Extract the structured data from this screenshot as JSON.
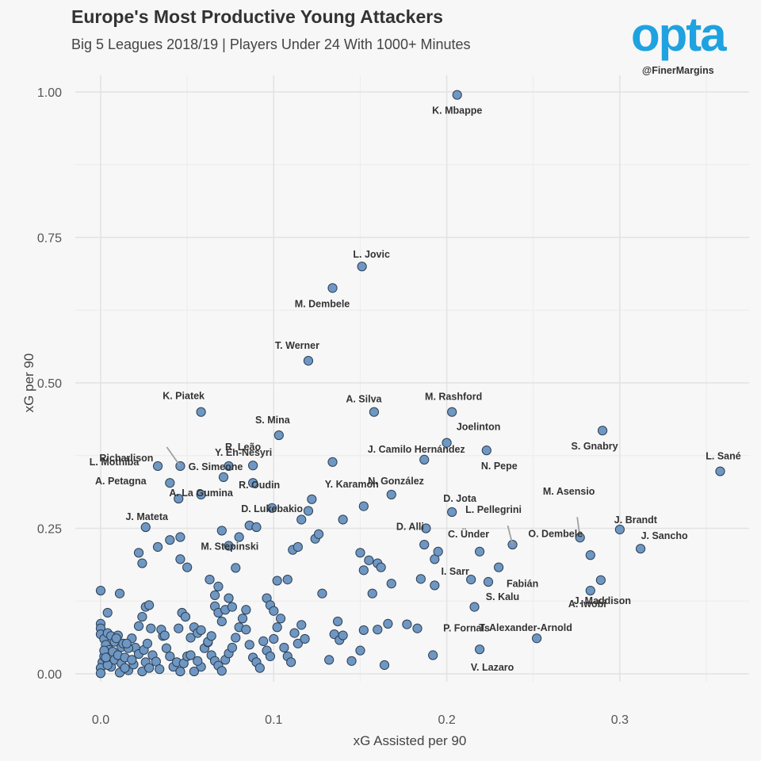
{
  "header": {
    "title": "Europe's Most Productive Young Attackers",
    "subtitle": "Big 5 Leagues 2018/19 | Players Under 24 With 1000+ Minutes"
  },
  "branding": {
    "logo_text": "opta",
    "handle": "@FinerMargins",
    "logo_color": "#1fa2e0"
  },
  "chart_data": {
    "type": "scatter",
    "xlabel": "xG Assisted per 90",
    "ylabel": "xG per 90",
    "xlim": [
      0.0,
      0.36
    ],
    "ylim": [
      0.0,
      1.0
    ],
    "xticks": [
      0.0,
      0.1,
      0.2,
      0.3
    ],
    "xtick_labels": [
      "0.0",
      "0.1",
      "0.2",
      "0.3"
    ],
    "yticks": [
      0.0,
      0.25,
      0.5,
      0.75,
      1.0
    ],
    "ytick_labels": [
      "0.00",
      "0.25",
      "0.50",
      "0.75",
      "1.00"
    ],
    "grid": true,
    "marker_color": "#6f97c2",
    "marker_edge": "#2b3f55",
    "labeled_points": [
      {
        "name": "K. Mbappe",
        "x": 0.206,
        "y": 0.995
      },
      {
        "name": "L. Jovic",
        "x": 0.151,
        "y": 0.7
      },
      {
        "name": "M. Dembele",
        "x": 0.134,
        "y": 0.663
      },
      {
        "name": "T. Werner",
        "x": 0.12,
        "y": 0.538
      },
      {
        "name": "K. Piatek",
        "x": 0.058,
        "y": 0.45
      },
      {
        "name": "M. Rashford",
        "x": 0.203,
        "y": 0.45
      },
      {
        "name": "A. Silva",
        "x": 0.158,
        "y": 0.45
      },
      {
        "name": "S. Gnabry",
        "x": 0.29,
        "y": 0.418
      },
      {
        "name": "S. Mina",
        "x": 0.103,
        "y": 0.41
      },
      {
        "name": "Joelinton",
        "x": 0.2,
        "y": 0.397
      },
      {
        "name": "Richarlison",
        "x": 0.046,
        "y": 0.357
      },
      {
        "name": "R. Leão",
        "x": 0.074,
        "y": 0.357
      },
      {
        "name": "N. Pepe",
        "x": 0.223,
        "y": 0.384
      },
      {
        "name": "J. Camilo Hernández",
        "x": 0.187,
        "y": 0.368
      },
      {
        "name": "L. Mothiba",
        "x": 0.033,
        "y": 0.357
      },
      {
        "name": "G. Simeone",
        "x": 0.071,
        "y": 0.338
      },
      {
        "name": "Y. En-Nesyri",
        "x": 0.088,
        "y": 0.358
      },
      {
        "name": "N. González",
        "x": 0.134,
        "y": 0.364
      },
      {
        "name": "L. Sané",
        "x": 0.358,
        "y": 0.348
      },
      {
        "name": "A. Petagna",
        "x": 0.04,
        "y": 0.328
      },
      {
        "name": "A. La Gumina",
        "x": 0.058,
        "y": 0.308
      },
      {
        "name": "R. Oudin",
        "x": 0.088,
        "y": 0.328
      },
      {
        "name": "Y. Karamoh",
        "x": 0.168,
        "y": 0.308
      },
      {
        "name": "J. Mateta",
        "x": 0.045,
        "y": 0.301
      },
      {
        "name": "D. Lukebakio",
        "x": 0.099,
        "y": 0.285
      },
      {
        "name": "D. Jota",
        "x": 0.203,
        "y": 0.278
      },
      {
        "name": "D. Alli",
        "x": 0.188,
        "y": 0.25
      },
      {
        "name": "L. Pellegrini",
        "x": 0.238,
        "y": 0.222
      },
      {
        "name": "M. Asensio",
        "x": 0.277,
        "y": 0.234
      },
      {
        "name": "J. Brandt",
        "x": 0.3,
        "y": 0.248
      },
      {
        "name": "M. Stepinski",
        "x": 0.07,
        "y": 0.246
      },
      {
        "name": "O. Dembele",
        "x": 0.283,
        "y": 0.204
      },
      {
        "name": "J. Sancho",
        "x": 0.312,
        "y": 0.215
      },
      {
        "name": "C. Ünder",
        "x": 0.219,
        "y": 0.21
      },
      {
        "name": "Fabián",
        "x": 0.23,
        "y": 0.183
      },
      {
        "name": "J. Maddison",
        "x": 0.289,
        "y": 0.161
      },
      {
        "name": "I. Sarr",
        "x": 0.214,
        "y": 0.162
      },
      {
        "name": "S. Kalu",
        "x": 0.224,
        "y": 0.158
      },
      {
        "name": "A. Iwobi",
        "x": 0.283,
        "y": 0.143
      },
      {
        "name": "P. Fornals",
        "x": 0.216,
        "y": 0.115
      },
      {
        "name": "T. Alexander-Arnold",
        "x": 0.252,
        "y": 0.061
      },
      {
        "name": "V. Lazaro",
        "x": 0.219,
        "y": 0.042
      }
    ],
    "unlabeled_points": [
      [
        0.0,
        0.143
      ],
      [
        0.011,
        0.138
      ],
      [
        0.004,
        0.105
      ],
      [
        0.0,
        0.086
      ],
      [
        0.0,
        0.078
      ],
      [
        0.0,
        0.068
      ],
      [
        0.002,
        0.06
      ],
      [
        0.004,
        0.07
      ],
      [
        0.006,
        0.065
      ],
      [
        0.008,
        0.055
      ],
      [
        0.01,
        0.066
      ],
      [
        0.012,
        0.046
      ],
      [
        0.003,
        0.05
      ],
      [
        0.005,
        0.041
      ],
      [
        0.007,
        0.038
      ],
      [
        0.001,
        0.02
      ],
      [
        0.002,
        0.03
      ],
      [
        0.004,
        0.022
      ],
      [
        0.006,
        0.012
      ],
      [
        0.008,
        0.024
      ],
      [
        0.0,
        0.01
      ],
      [
        0.0,
        0.001
      ],
      [
        0.004,
        0.015
      ],
      [
        0.01,
        0.032
      ],
      [
        0.012,
        0.018
      ],
      [
        0.014,
        0.028
      ],
      [
        0.016,
        0.006
      ],
      [
        0.011,
        0.002
      ],
      [
        0.009,
        0.061
      ],
      [
        0.013,
        0.052
      ],
      [
        0.018,
        0.061
      ],
      [
        0.02,
        0.045
      ],
      [
        0.022,
        0.034
      ],
      [
        0.019,
        0.016
      ],
      [
        0.024,
        0.004
      ],
      [
        0.026,
        0.02
      ],
      [
        0.028,
        0.01
      ],
      [
        0.025,
        0.041
      ],
      [
        0.027,
        0.052
      ],
      [
        0.03,
        0.032
      ],
      [
        0.032,
        0.021
      ],
      [
        0.034,
        0.008
      ],
      [
        0.029,
        0.078
      ],
      [
        0.022,
        0.082
      ],
      [
        0.024,
        0.098
      ],
      [
        0.026,
        0.115
      ],
      [
        0.028,
        0.118
      ],
      [
        0.036,
        0.065
      ],
      [
        0.038,
        0.044
      ],
      [
        0.04,
        0.03
      ],
      [
        0.042,
        0.012
      ],
      [
        0.044,
        0.02
      ],
      [
        0.046,
        0.004
      ],
      [
        0.048,
        0.018
      ],
      [
        0.05,
        0.03
      ],
      [
        0.052,
        0.062
      ],
      [
        0.054,
        0.08
      ],
      [
        0.045,
        0.078
      ],
      [
        0.047,
        0.105
      ],
      [
        0.049,
        0.098
      ],
      [
        0.035,
        0.076
      ],
      [
        0.037,
        0.066
      ],
      [
        0.056,
        0.07
      ],
      [
        0.058,
        0.075
      ],
      [
        0.06,
        0.044
      ],
      [
        0.062,
        0.054
      ],
      [
        0.064,
        0.032
      ],
      [
        0.066,
        0.022
      ],
      [
        0.068,
        0.014
      ],
      [
        0.07,
        0.005
      ],
      [
        0.072,
        0.024
      ],
      [
        0.074,
        0.035
      ],
      [
        0.076,
        0.045
      ],
      [
        0.078,
        0.062
      ],
      [
        0.08,
        0.08
      ],
      [
        0.082,
        0.095
      ],
      [
        0.084,
        0.11
      ],
      [
        0.066,
        0.116
      ],
      [
        0.068,
        0.105
      ],
      [
        0.07,
        0.09
      ],
      [
        0.072,
        0.11
      ],
      [
        0.074,
        0.13
      ],
      [
        0.076,
        0.115
      ],
      [
        0.066,
        0.135
      ],
      [
        0.068,
        0.15
      ],
      [
        0.05,
        0.183
      ],
      [
        0.046,
        0.197
      ],
      [
        0.04,
        0.23
      ],
      [
        0.033,
        0.218
      ],
      [
        0.022,
        0.208
      ],
      [
        0.024,
        0.19
      ],
      [
        0.026,
        0.252
      ],
      [
        0.046,
        0.235
      ],
      [
        0.074,
        0.22
      ],
      [
        0.08,
        0.235
      ],
      [
        0.078,
        0.182
      ],
      [
        0.063,
        0.162
      ],
      [
        0.086,
        0.255
      ],
      [
        0.09,
        0.252
      ],
      [
        0.094,
        0.056
      ],
      [
        0.096,
        0.04
      ],
      [
        0.098,
        0.03
      ],
      [
        0.1,
        0.06
      ],
      [
        0.102,
        0.08
      ],
      [
        0.104,
        0.095
      ],
      [
        0.106,
        0.045
      ],
      [
        0.108,
        0.03
      ],
      [
        0.11,
        0.02
      ],
      [
        0.112,
        0.07
      ],
      [
        0.114,
        0.052
      ],
      [
        0.116,
        0.084
      ],
      [
        0.118,
        0.06
      ],
      [
        0.096,
        0.13
      ],
      [
        0.098,
        0.118
      ],
      [
        0.1,
        0.108
      ],
      [
        0.102,
        0.16
      ],
      [
        0.108,
        0.162
      ],
      [
        0.111,
        0.213
      ],
      [
        0.114,
        0.218
      ],
      [
        0.116,
        0.265
      ],
      [
        0.12,
        0.28
      ],
      [
        0.122,
        0.3
      ],
      [
        0.124,
        0.232
      ],
      [
        0.126,
        0.24
      ],
      [
        0.128,
        0.138
      ],
      [
        0.132,
        0.024
      ],
      [
        0.135,
        0.068
      ],
      [
        0.138,
        0.058
      ],
      [
        0.14,
        0.066
      ],
      [
        0.137,
        0.09
      ],
      [
        0.145,
        0.022
      ],
      [
        0.15,
        0.04
      ],
      [
        0.152,
        0.075
      ],
      [
        0.157,
        0.138
      ],
      [
        0.16,
        0.076
      ],
      [
        0.164,
        0.015
      ],
      [
        0.166,
        0.086
      ],
      [
        0.155,
        0.195
      ],
      [
        0.152,
        0.178
      ],
      [
        0.16,
        0.19
      ],
      [
        0.162,
        0.183
      ],
      [
        0.168,
        0.155
      ],
      [
        0.177,
        0.085
      ],
      [
        0.183,
        0.078
      ],
      [
        0.185,
        0.163
      ],
      [
        0.187,
        0.222
      ],
      [
        0.193,
        0.197
      ],
      [
        0.195,
        0.21
      ],
      [
        0.193,
        0.152
      ],
      [
        0.192,
        0.032
      ],
      [
        0.15,
        0.208
      ],
      [
        0.152,
        0.288
      ],
      [
        0.14,
        0.265
      ],
      [
        0.084,
        0.076
      ],
      [
        0.086,
        0.05
      ],
      [
        0.088,
        0.028
      ],
      [
        0.09,
        0.02
      ],
      [
        0.092,
        0.01
      ],
      [
        0.058,
        0.012
      ],
      [
        0.056,
        0.022
      ],
      [
        0.054,
        0.004
      ],
      [
        0.052,
        0.032
      ],
      [
        0.062,
        0.055
      ],
      [
        0.064,
        0.065
      ],
      [
        0.018,
        0.024
      ],
      [
        0.016,
        0.044
      ],
      [
        0.015,
        0.052
      ],
      [
        0.014,
        0.01
      ],
      [
        0.002,
        0.04
      ],
      [
        0.003,
        0.028
      ]
    ]
  }
}
